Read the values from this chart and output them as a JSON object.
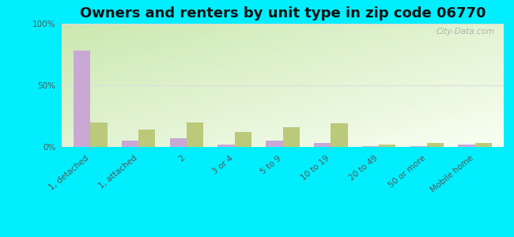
{
  "title": "Owners and renters by unit type in zip code 06770",
  "categories": [
    "1, detached",
    "1, attached",
    "2",
    "3 or 4",
    "5 to 9",
    "10 to 19",
    "20 to 49",
    "50 or more",
    "Mobile home"
  ],
  "owner_values": [
    78,
    5,
    7,
    2,
    5,
    3,
    0.5,
    0.5,
    2
  ],
  "renter_values": [
    20,
    14,
    20,
    12,
    16,
    19,
    2,
    3,
    3
  ],
  "owner_color": "#c9a8d4",
  "renter_color": "#bcc87a",
  "background_outer": "#00eeff",
  "background_plot_tl": "#cce8b0",
  "background_plot_br": "#f8fff4",
  "ylim": [
    0,
    100
  ],
  "yticks": [
    0,
    50,
    100
  ],
  "ytick_labels": [
    "0%",
    "50%",
    "100%"
  ],
  "bar_width": 0.35,
  "watermark": "City-Data.com",
  "title_fontsize": 13,
  "tick_fontsize": 7.5,
  "legend_fontsize": 9
}
